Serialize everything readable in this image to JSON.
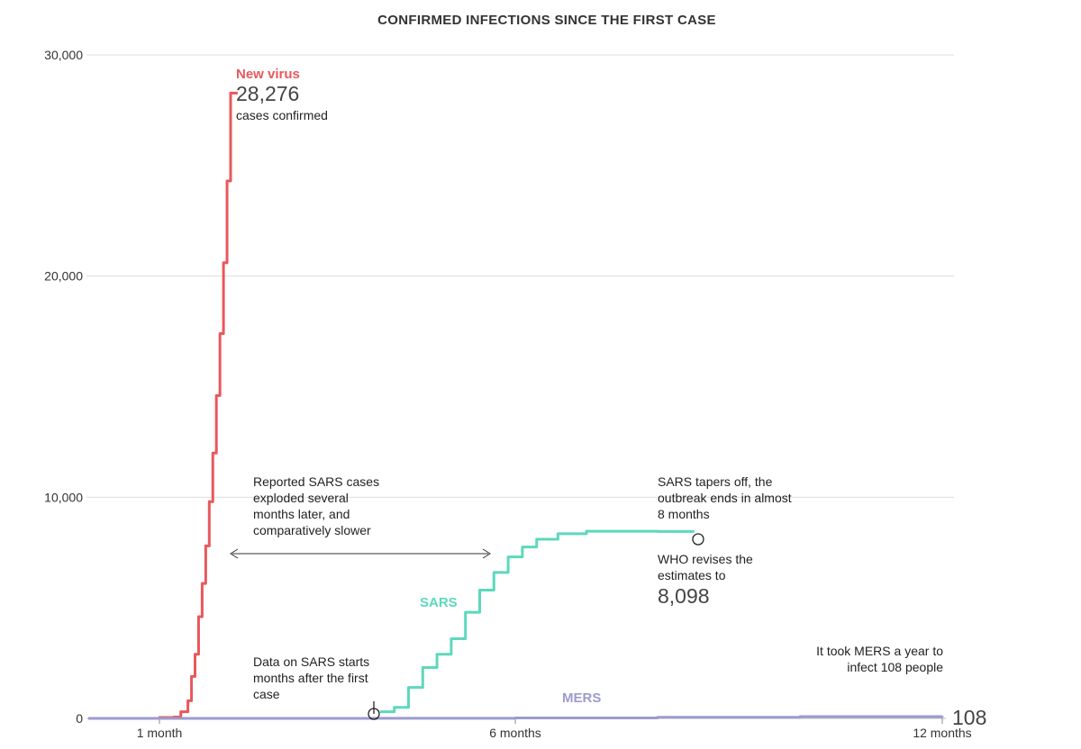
{
  "chart_data": {
    "type": "line",
    "title": "CONFIRMED INFECTIONS SINCE THE FIRST CASE",
    "xlabel": "",
    "ylabel": "",
    "x_unit": "months since first case",
    "xlim": [
      0,
      12.2
    ],
    "ylim": [
      0,
      30000
    ],
    "grid": true,
    "x_ticks": [
      {
        "value": 1,
        "label": "1 month"
      },
      {
        "value": 6,
        "label": "6 months"
      },
      {
        "value": 12,
        "label": "12 months"
      }
    ],
    "y_ticks": [
      {
        "value": 0,
        "label": "0"
      },
      {
        "value": 10000,
        "label": "10,000"
      },
      {
        "value": 20000,
        "label": "20,000"
      },
      {
        "value": 30000,
        "label": "30,000"
      }
    ],
    "series": [
      {
        "name": "New virus",
        "color": "#e8585c",
        "x": [
          0.75,
          1.0,
          1.2,
          1.3,
          1.4,
          1.45,
          1.5,
          1.55,
          1.6,
          1.65,
          1.7,
          1.75,
          1.8,
          1.85,
          1.9,
          1.95,
          2.0,
          2.05,
          2.1
        ],
        "y": [
          0,
          40,
          60,
          300,
          800,
          1900,
          2900,
          4600,
          6100,
          7800,
          9800,
          12000,
          14600,
          17400,
          20600,
          24300,
          28276,
          28276,
          28276
        ]
      },
      {
        "name": "SARS",
        "color": "#5dd8bd",
        "x": [
          4.1,
          4.3,
          4.5,
          4.7,
          4.9,
          5.1,
          5.3,
          5.5,
          5.7,
          5.9,
          6.1,
          6.3,
          6.6,
          7.0,
          7.5,
          8.0,
          8.5
        ],
        "y": [
          300,
          500,
          1400,
          2300,
          2900,
          3600,
          4800,
          5800,
          6600,
          7300,
          7750,
          8100,
          8350,
          8460,
          8460,
          8450,
          8400
        ]
      },
      {
        "name": "MERS",
        "color": "#9c9bd0",
        "x": [
          0,
          2,
          4,
          6,
          8,
          10,
          12
        ],
        "y": [
          0,
          0,
          5,
          20,
          50,
          80,
          108
        ]
      }
    ],
    "annotations": {
      "new_virus_name": "New virus",
      "new_virus_value": "28,276",
      "new_virus_caption": "cases confirmed",
      "sars_name": "SARS",
      "mers_name": "MERS",
      "mers_end_value": "108",
      "delay_note": [
        "Reported SARS cases",
        "exploded several",
        "months later, and",
        "comparatively slower"
      ],
      "start_note": [
        "Data on SARS starts",
        "months after the first",
        "case"
      ],
      "taper_note": [
        "SARS tapers off, the",
        "outbreak ends in almost",
        "8 months"
      ],
      "revise_note": [
        "WHO revises the",
        "estimates to"
      ],
      "revise_value": "8,098",
      "mers_note": [
        "It took MERS a year to",
        "infect 108 people"
      ]
    }
  }
}
